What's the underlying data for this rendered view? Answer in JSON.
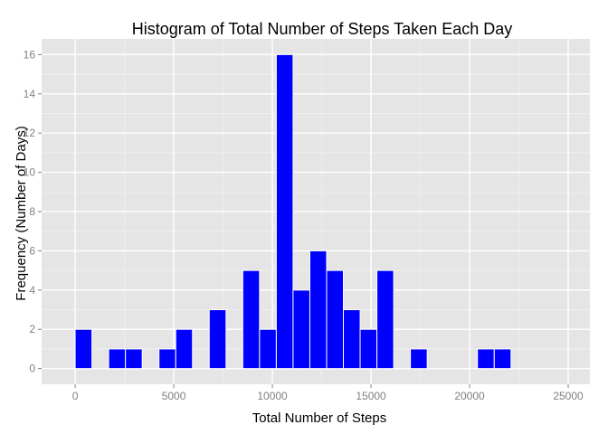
{
  "chart_data": {
    "type": "bar",
    "title": "Histogram of Total Number of Steps Taken Each Day",
    "xlabel": "Total Number of Steps",
    "ylabel": "Frequency (Number of Days)",
    "bin_width": 850,
    "bins": [
      {
        "x": 425,
        "count": 2
      },
      {
        "x": 2125,
        "count": 1
      },
      {
        "x": 2975,
        "count": 1
      },
      {
        "x": 4675,
        "count": 1
      },
      {
        "x": 5525,
        "count": 2
      },
      {
        "x": 7225,
        "count": 3
      },
      {
        "x": 8925,
        "count": 5
      },
      {
        "x": 9775,
        "count": 2
      },
      {
        "x": 10625,
        "count": 16
      },
      {
        "x": 11475,
        "count": 4
      },
      {
        "x": 12325,
        "count": 6
      },
      {
        "x": 13175,
        "count": 5
      },
      {
        "x": 14025,
        "count": 3
      },
      {
        "x": 14875,
        "count": 2
      },
      {
        "x": 15725,
        "count": 5
      },
      {
        "x": 17425,
        "count": 1
      },
      {
        "x": 20825,
        "count": 1
      },
      {
        "x": 21675,
        "count": 1
      }
    ],
    "xlim": [
      -1700,
      26100
    ],
    "ylim": [
      -0.8,
      16.8
    ],
    "x_ticks": [
      0,
      5000,
      10000,
      15000,
      20000,
      25000
    ],
    "x_tick_labels": [
      "0",
      "5000",
      "10000",
      "15000",
      "20000",
      "25000"
    ],
    "y_ticks": [
      0,
      2,
      4,
      6,
      8,
      10,
      12,
      14,
      16
    ],
    "y_tick_labels": [
      "0",
      "2",
      "4",
      "6",
      "8",
      "10",
      "12",
      "14",
      "16"
    ],
    "grid": true,
    "bar_fill": "#0000ff",
    "bar_outline": "#ffffff",
    "panel_background": "#e5e5e5",
    "gridline_color": "#ffffff"
  }
}
